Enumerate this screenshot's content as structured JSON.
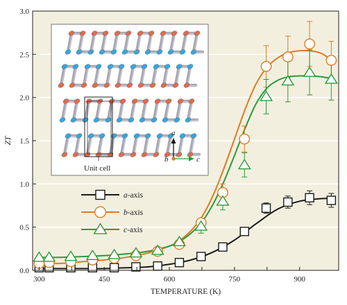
{
  "chart_data": {
    "type": "line",
    "title": "",
    "xlabel": "TEMPERATURE (K)",
    "ylabel": "ZT",
    "xlim": [
      285,
      990
    ],
    "ylim": [
      0,
      3.0
    ],
    "xticks": [
      300,
      375,
      450,
      525,
      600,
      675,
      750,
      825,
      900
    ],
    "xtick_labels": [
      "300",
      "",
      "450",
      "",
      "600",
      "",
      "750",
      "",
      "900"
    ],
    "yticks": [
      0.0,
      0.5,
      1.0,
      1.5,
      2.0,
      2.5,
      3.0
    ],
    "ytick_labels": [
      "0.0",
      "0.5",
      "1.0",
      "1.5",
      "2.0",
      "2.5",
      "3.0"
    ],
    "grid": "horizontal",
    "background": "#f3efdf",
    "legend_position": "lower-left",
    "series": [
      {
        "name": "a-axis",
        "axis_letter": "a",
        "axis_suffix": "-axis",
        "color": "#1a1a1a",
        "marker": "square",
        "x": [
          300,
          323,
          373,
          423,
          473,
          523,
          573,
          623,
          673,
          723,
          773,
          823,
          873,
          923,
          973
        ],
        "y": [
          0.03,
          0.03,
          0.03,
          0.03,
          0.03,
          0.04,
          0.05,
          0.09,
          0.16,
          0.27,
          0.45,
          0.72,
          0.79,
          0.84,
          0.81
        ],
        "err": [
          0,
          0,
          0,
          0,
          0,
          0,
          0,
          0,
          0,
          0,
          0,
          0.06,
          0.07,
          0.08,
          0.08
        ],
        "fit_x": [
          300,
          350,
          400,
          450,
          500,
          550,
          600,
          650,
          700,
          750,
          800,
          850,
          900,
          950,
          975
        ],
        "fit_y": [
          0.02,
          0.02,
          0.02,
          0.02,
          0.03,
          0.04,
          0.07,
          0.12,
          0.21,
          0.35,
          0.54,
          0.71,
          0.8,
          0.83,
          0.83
        ]
      },
      {
        "name": "b-axis",
        "axis_letter": "b",
        "axis_suffix": "-axis",
        "color": "#e07b22",
        "marker": "circle",
        "x": [
          300,
          323,
          373,
          423,
          473,
          523,
          573,
          623,
          673,
          723,
          773,
          823,
          873,
          923,
          973
        ],
        "y": [
          0.08,
          0.09,
          0.1,
          0.12,
          0.14,
          0.17,
          0.22,
          0.3,
          0.55,
          0.9,
          1.52,
          2.36,
          2.47,
          2.62,
          2.43
        ],
        "err": [
          0,
          0,
          0,
          0,
          0,
          0,
          0,
          0,
          0,
          0.1,
          0.15,
          0.24,
          0.24,
          0.26,
          0.22
        ],
        "fit_x": [
          300,
          350,
          400,
          450,
          500,
          550,
          600,
          625,
          650,
          675,
          700,
          725,
          750,
          775,
          800,
          825,
          850,
          875,
          900,
          925,
          950,
          975
        ],
        "fit_y": [
          0.08,
          0.08,
          0.1,
          0.12,
          0.15,
          0.2,
          0.28,
          0.35,
          0.46,
          0.62,
          0.86,
          1.17,
          1.52,
          1.87,
          2.16,
          2.35,
          2.46,
          2.52,
          2.54,
          2.54,
          2.51,
          2.43
        ]
      },
      {
        "name": "c-axis",
        "axis_letter": "c",
        "axis_suffix": "-axis",
        "color": "#2a9a3c",
        "marker": "triangle",
        "x": [
          300,
          323,
          373,
          423,
          473,
          523,
          573,
          623,
          673,
          723,
          773,
          823,
          873,
          923,
          973
        ],
        "y": [
          0.15,
          0.15,
          0.16,
          0.17,
          0.18,
          0.2,
          0.23,
          0.33,
          0.51,
          0.8,
          1.22,
          2.01,
          2.19,
          2.29,
          2.21
        ],
        "err": [
          0,
          0,
          0,
          0,
          0,
          0,
          0,
          0,
          0.08,
          0.1,
          0.14,
          0.2,
          0.24,
          0.26,
          0.24
        ],
        "fit_x": [
          300,
          350,
          400,
          450,
          500,
          550,
          600,
          625,
          650,
          675,
          700,
          725,
          750,
          775,
          800,
          825,
          850,
          875,
          900,
          925,
          950,
          975
        ],
        "fit_y": [
          0.15,
          0.15,
          0.16,
          0.17,
          0.19,
          0.22,
          0.28,
          0.34,
          0.43,
          0.56,
          0.76,
          1.02,
          1.33,
          1.65,
          1.93,
          2.11,
          2.2,
          2.24,
          2.25,
          2.25,
          2.24,
          2.22
        ]
      }
    ],
    "inset": {
      "caption": "Unit cell",
      "axis_labels": {
        "up": "a",
        "origin": "b",
        "right": "c"
      },
      "axis_colors": {
        "up": "#111111",
        "right": "#2a9a3c"
      },
      "atom_colors": [
        "#e06a4e",
        "#35a6de",
        "#a9a9b4"
      ]
    }
  }
}
